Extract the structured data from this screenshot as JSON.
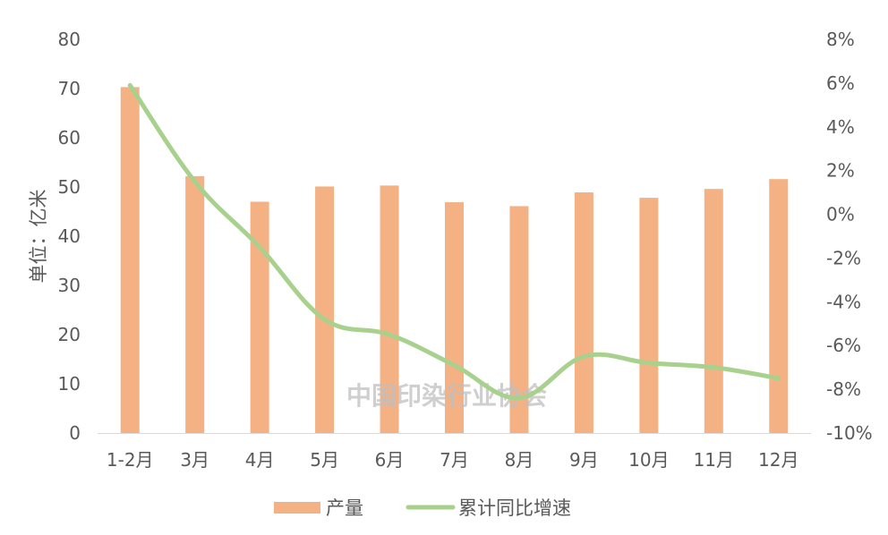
{
  "chart_data": {
    "type": "bar",
    "categories": [
      "1-2月",
      "3月",
      "4月",
      "5月",
      "6月",
      "7月",
      "8月",
      "9月",
      "10月",
      "11月",
      "12月"
    ],
    "series": [
      {
        "name": "产量",
        "type": "bar",
        "axis": "left",
        "color": "#F4B183",
        "values": [
          70.3,
          52.2,
          47.0,
          50.1,
          50.3,
          46.9,
          46.1,
          48.9,
          47.8,
          49.6,
          51.6
        ]
      },
      {
        "name": "累计同比增速",
        "type": "line",
        "axis": "right",
        "color": "#A9D18E",
        "unit": "%",
        "values": [
          5.9,
          1.5,
          -1.5,
          -4.8,
          -5.5,
          -6.9,
          -8.4,
          -6.5,
          -6.8,
          -7.0,
          -7.5
        ]
      }
    ],
    "ylabel": "单位：亿米",
    "ylim": [
      0,
      80
    ],
    "yticks": [
      "0",
      "10",
      "20",
      "30",
      "40",
      "50",
      "60",
      "70",
      "80"
    ],
    "y2lim": [
      -10,
      8
    ],
    "y2ticks": [
      "-10%",
      "-8%",
      "-6%",
      "-4%",
      "-2%",
      "0%",
      "2%",
      "4%",
      "6%",
      "8%"
    ],
    "grid": false,
    "legend_position": "bottom",
    "watermark": "中国印染行业协会"
  }
}
